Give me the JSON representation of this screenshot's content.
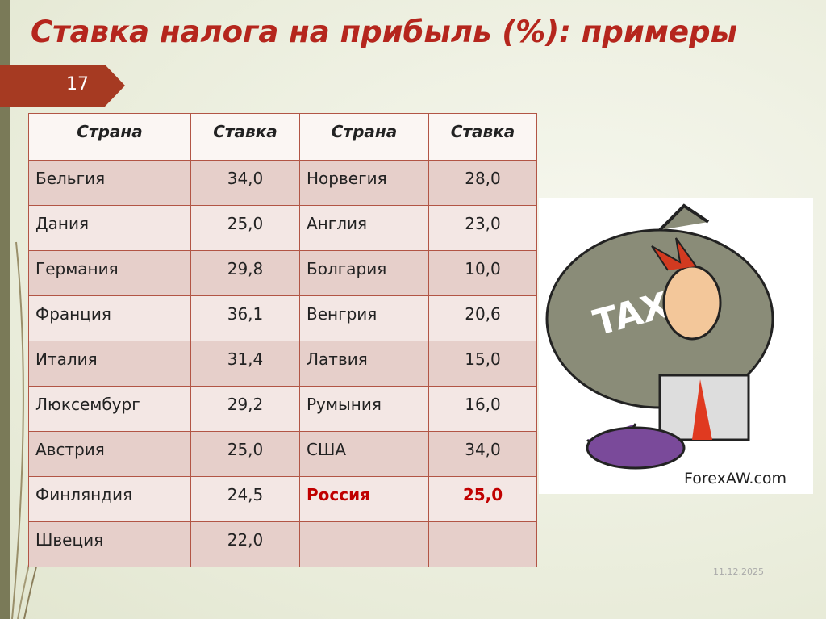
{
  "header": {
    "title": "Ставка налога на прибыль (%): примеры",
    "slide_number": "17"
  },
  "table": {
    "columns": [
      "Страна",
      "Ставка",
      "Страна",
      "Ставка"
    ],
    "rows": [
      [
        "Бельгия",
        "34,0",
        "Норвегия",
        "28,0"
      ],
      [
        "Дания",
        "25,0",
        "Англия",
        "23,0"
      ],
      [
        "Германия",
        "29,8",
        "Болгария",
        "10,0"
      ],
      [
        "Франция",
        "36,1",
        "Венгрия",
        "20,6"
      ],
      [
        "Италия",
        "31,4",
        "Латвия",
        "15,0"
      ],
      [
        "Люксембург",
        "29,2",
        "Румыния",
        "16,0"
      ],
      [
        "Австрия",
        "25,0",
        "США",
        "34,0"
      ],
      [
        "Финляндия",
        "24,5",
        "Россия",
        "25,0"
      ],
      [
        "Швеция",
        "22,0"
      ]
    ]
  },
  "image": {
    "caption": "ForexAW.com"
  },
  "footer": {
    "date": "11.12.2025"
  }
}
